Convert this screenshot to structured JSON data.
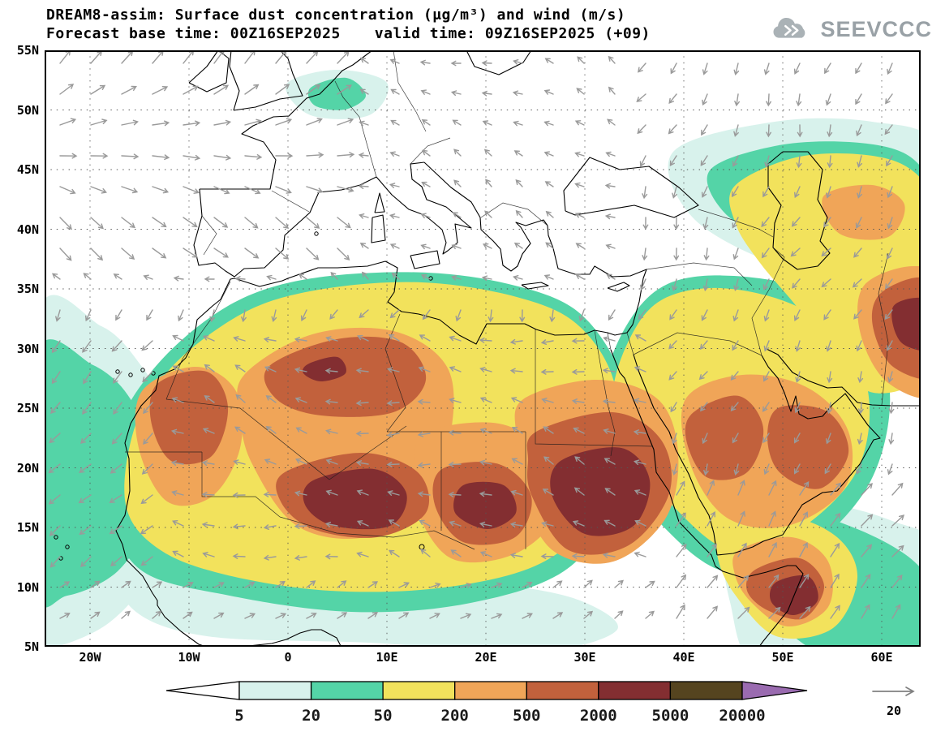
{
  "header": {
    "title": "DREAM8-assim: Surface dust concentration (μg/m³) and wind (m/s)",
    "forecast_base": "Forecast base time: 00Z16SEP2025",
    "valid_time": "valid time: 09Z16SEP2025 (+09)",
    "logo_text": "SEEVCCC"
  },
  "chart_data": {
    "type": "heatmap",
    "title": "DREAM8-assim: Surface dust concentration (μg/m³) and wind (m/s)",
    "model": "DREAM8-assim",
    "variable": "Surface dust concentration",
    "units": "μg/m³",
    "overlay": "wind vectors",
    "wind_units": "m/s",
    "forecast_base_time": "00Z16SEP2025",
    "valid_time": "09Z16SEP2025",
    "forecast_step": "+09",
    "projection_extent": {
      "lon_min": -25,
      "lon_max": 64,
      "lat_min": 5,
      "lat_max": 55
    },
    "x_axis": {
      "ticks": [
        "20W",
        "10W",
        "0",
        "10E",
        "20E",
        "30E",
        "40E",
        "50E",
        "60E"
      ]
    },
    "y_axis": {
      "ticks": [
        "55N",
        "50N",
        "45N",
        "40N",
        "35N",
        "30N",
        "25N",
        "20N",
        "15N",
        "10N",
        "5N"
      ]
    },
    "contour_levels": [
      5,
      20,
      50,
      200,
      500,
      2000,
      5000,
      20000
    ],
    "contour_colors": [
      "#ffffff",
      "#d8f2ec",
      "#54d4a7",
      "#f2e25c",
      "#f0a558",
      "#c2613c",
      "#832e31",
      "#55441f",
      "#9a6bb0"
    ],
    "grid": "dotted",
    "legend_position": "bottom",
    "wind_reference": 20,
    "dust_maxima_regions": [
      "W Algeria / Morocco border",
      "central Algeria",
      "Mali-Niger (Sahel)",
      "Chad",
      "Sudan",
      "NW Arabia",
      "Persian Gulf coast",
      "E Iran",
      "Horn of Africa (N Somalia)"
    ]
  },
  "legend": {
    "wind_reference_label": "20"
  }
}
